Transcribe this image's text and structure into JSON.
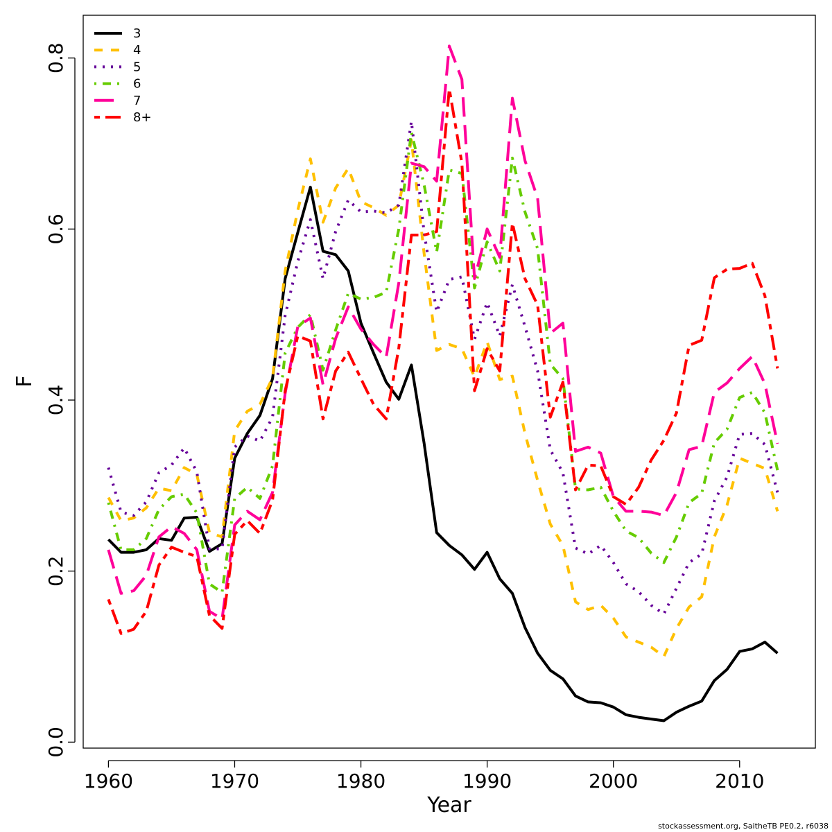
{
  "chart_data": {
    "type": "line",
    "xlabel": "Year",
    "ylabel": "F",
    "xlim": [
      1958,
      2016
    ],
    "ylim": [
      -0.007,
      0.85
    ],
    "xticks": [
      1960,
      1970,
      1980,
      1990,
      2000,
      2010
    ],
    "yticks": [
      0.0,
      0.2,
      0.4,
      0.6,
      0.8
    ],
    "legend_position": "top-left",
    "credit": "stockassessment.org, SaitheTB  PE0.2, r6038",
    "x": [
      1960,
      1961,
      1962,
      1963,
      1964,
      1965,
      1966,
      1967,
      1968,
      1969,
      1970,
      1971,
      1972,
      1973,
      1974,
      1975,
      1976,
      1977,
      1978,
      1979,
      1980,
      1981,
      1982,
      1983,
      1984,
      1985,
      1986,
      1987,
      1988,
      1989,
      1990,
      1991,
      1992,
      1993,
      1994,
      1995,
      1996,
      1997,
      1998,
      1999,
      2000,
      2001,
      2002,
      2003,
      2004,
      2005,
      2006,
      2007,
      2008,
      2009,
      2010,
      2011,
      2012,
      2013
    ],
    "series": [
      {
        "name": "3",
        "color": "#000000",
        "dash": "solid",
        "values": [
          0.237,
          0.222,
          0.222,
          0.225,
          0.238,
          0.236,
          0.262,
          0.263,
          0.223,
          0.232,
          0.332,
          0.361,
          0.382,
          0.425,
          0.542,
          0.596,
          0.649,
          0.574,
          0.57,
          0.551,
          0.49,
          0.455,
          0.421,
          0.401,
          0.441,
          0.35,
          0.245,
          0.23,
          0.219,
          0.202,
          0.222,
          0.191,
          0.174,
          0.134,
          0.104,
          0.084,
          0.074,
          0.054,
          0.047,
          0.046,
          0.041,
          0.032,
          0.029,
          0.027,
          0.025,
          0.035,
          0.042,
          0.048,
          0.072,
          0.085,
          0.106,
          0.109,
          0.117,
          0.104
        ]
      },
      {
        "name": "4",
        "color": "#FFC000",
        "dash": "dash",
        "values": [
          0.286,
          0.259,
          0.262,
          0.274,
          0.297,
          0.294,
          0.321,
          0.313,
          0.245,
          0.24,
          0.364,
          0.387,
          0.395,
          0.426,
          0.551,
          0.622,
          0.682,
          0.608,
          0.648,
          0.671,
          0.632,
          0.625,
          0.616,
          0.628,
          0.704,
          0.572,
          0.458,
          0.465,
          0.46,
          0.427,
          0.468,
          0.424,
          0.428,
          0.361,
          0.306,
          0.255,
          0.23,
          0.164,
          0.155,
          0.16,
          0.145,
          0.123,
          0.117,
          0.111,
          0.1,
          0.133,
          0.158,
          0.17,
          0.24,
          0.277,
          0.332,
          0.326,
          0.32,
          0.27
        ]
      },
      {
        "name": "5",
        "color": "#660099",
        "dash": "dot",
        "values": [
          0.321,
          0.269,
          0.265,
          0.281,
          0.315,
          0.324,
          0.344,
          0.316,
          0.226,
          0.226,
          0.345,
          0.358,
          0.352,
          0.38,
          0.499,
          0.562,
          0.611,
          0.542,
          0.597,
          0.634,
          0.62,
          0.621,
          0.619,
          0.628,
          0.726,
          0.597,
          0.503,
          0.541,
          0.544,
          0.471,
          0.514,
          0.475,
          0.535,
          0.486,
          0.434,
          0.342,
          0.315,
          0.227,
          0.22,
          0.23,
          0.21,
          0.185,
          0.176,
          0.16,
          0.15,
          0.18,
          0.21,
          0.22,
          0.282,
          0.31,
          0.36,
          0.361,
          0.348,
          0.292
        ]
      },
      {
        "name": "6",
        "color": "#66CC00",
        "dash": "dotdash",
        "values": [
          0.28,
          0.225,
          0.225,
          0.238,
          0.272,
          0.287,
          0.29,
          0.268,
          0.185,
          0.175,
          0.285,
          0.298,
          0.285,
          0.323,
          0.455,
          0.485,
          0.5,
          0.435,
          0.482,
          0.525,
          0.518,
          0.52,
          0.526,
          0.6,
          0.713,
          0.652,
          0.573,
          0.669,
          0.665,
          0.531,
          0.585,
          0.551,
          0.683,
          0.62,
          0.577,
          0.442,
          0.425,
          0.296,
          0.295,
          0.298,
          0.27,
          0.247,
          0.239,
          0.221,
          0.21,
          0.24,
          0.28,
          0.291,
          0.35,
          0.366,
          0.403,
          0.409,
          0.385,
          0.318
        ]
      },
      {
        "name": "7",
        "color": "#FF0099",
        "dash": "longdash",
        "values": [
          0.225,
          0.174,
          0.177,
          0.195,
          0.24,
          0.252,
          0.244,
          0.225,
          0.153,
          0.144,
          0.254,
          0.27,
          0.26,
          0.292,
          0.408,
          0.486,
          0.496,
          0.418,
          0.472,
          0.509,
          0.483,
          0.465,
          0.45,
          0.537,
          0.677,
          0.673,
          0.656,
          0.814,
          0.775,
          0.542,
          0.6,
          0.567,
          0.753,
          0.68,
          0.636,
          0.478,
          0.49,
          0.34,
          0.345,
          0.338,
          0.287,
          0.27,
          0.27,
          0.269,
          0.265,
          0.292,
          0.342,
          0.346,
          0.409,
          0.42,
          0.437,
          0.451,
          0.419,
          0.349
        ]
      },
      {
        "name": "8+",
        "color": "#FF0000",
        "dash": "twodash",
        "values": [
          0.167,
          0.127,
          0.132,
          0.153,
          0.207,
          0.228,
          0.222,
          0.217,
          0.148,
          0.133,
          0.243,
          0.259,
          0.244,
          0.283,
          0.411,
          0.475,
          0.469,
          0.378,
          0.434,
          0.456,
          0.425,
          0.395,
          0.378,
          0.461,
          0.593,
          0.593,
          0.597,
          0.764,
          0.677,
          0.411,
          0.46,
          0.434,
          0.607,
          0.542,
          0.511,
          0.38,
          0.421,
          0.295,
          0.324,
          0.323,
          0.287,
          0.278,
          0.298,
          0.33,
          0.353,
          0.385,
          0.464,
          0.47,
          0.543,
          0.553,
          0.554,
          0.56,
          0.522,
          0.437
        ]
      }
    ]
  }
}
